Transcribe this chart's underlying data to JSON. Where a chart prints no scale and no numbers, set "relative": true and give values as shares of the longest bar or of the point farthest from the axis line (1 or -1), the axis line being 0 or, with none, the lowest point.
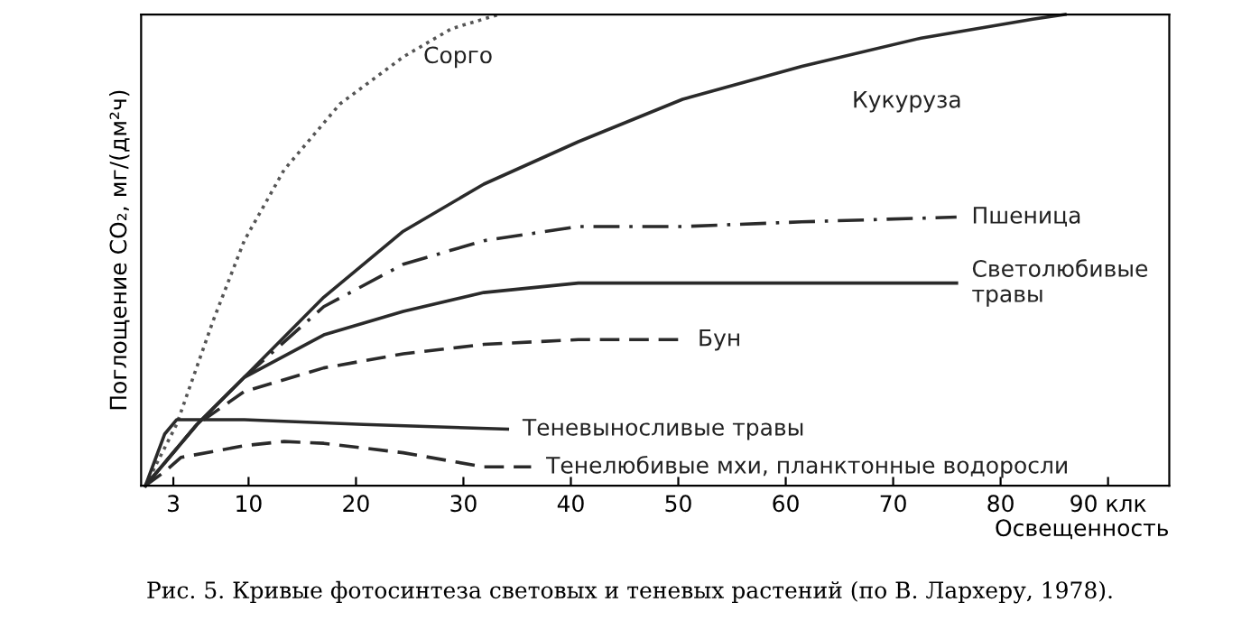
{
  "chart_data": {
    "type": "line",
    "relative": true,
    "xlabel": "Освещенность",
    "ylabel": "Поглощение CO₂, мг/(дм²ч)",
    "xlim": [
      0,
      95.7
    ],
    "xticks": [
      3,
      10,
      20,
      30,
      40,
      50,
      60,
      70,
      80,
      {
        "value": 90,
        "label": "90 клк"
      }
    ],
    "grid": false,
    "marker": "none",
    "annotations": [
      "Рис. 5. Кривые фотосинтеза световых и теневых растений (по В. Лархеру, 1978)."
    ],
    "series": [
      {
        "name": "Сорго",
        "color": "#555555",
        "line_style": "dotted",
        "x": [
          0.4,
          3.3,
          6.7,
          9.6,
          13.3,
          18.5,
          24.4,
          28.9,
          33.3
        ],
        "values": [
          0,
          0.13,
          0.35,
          0.52,
          0.67,
          0.81,
          0.91,
          0.97,
          1.0
        ]
      },
      {
        "name": "Кукуруза",
        "color": "#2a2a2a",
        "line_style": "solid",
        "x": [
          0.4,
          5.2,
          9.6,
          17,
          24.4,
          31.9,
          40.7,
          50.4,
          61.5,
          72.6,
          83,
          86
        ],
        "values": [
          0,
          0.13,
          0.23,
          0.4,
          0.54,
          0.64,
          0.73,
          0.82,
          0.89,
          0.95,
          0.99,
          1.0
        ]
      },
      {
        "name": "Пшеница",
        "color": "#2a2a2a",
        "line_style": "dashdot",
        "x": [
          9.6,
          17,
          24.4,
          31.9,
          40.7,
          50.4,
          61.5,
          75.9
        ],
        "values": [
          0.23,
          0.38,
          0.47,
          0.52,
          0.55,
          0.55,
          0.56,
          0.57
        ]
      },
      {
        "name": "Светолюбивые\nтравы",
        "color": "#2a2a2a",
        "line_style": "solid",
        "x": [
          0.4,
          5.2,
          9.6,
          17,
          24.4,
          31.9,
          40.7,
          50.4,
          61.5,
          75.9
        ],
        "values": [
          0,
          0.13,
          0.23,
          0.32,
          0.37,
          0.41,
          0.43,
          0.43,
          0.43,
          0.43
        ]
      },
      {
        "name": "Бун",
        "color": "#2a2a2a",
        "line_style": "dashed",
        "x": [
          0.4,
          5.2,
          9.6,
          17,
          24.4,
          31.9,
          40.7,
          50.4
        ],
        "values": [
          0,
          0.13,
          0.2,
          0.25,
          0.28,
          0.3,
          0.31,
          0.31
        ]
      },
      {
        "name": "Теневыносливые травы",
        "color": "#2a2a2a",
        "line_style": "solid",
        "x": [
          0.4,
          2.2,
          3.3,
          9.6,
          20.7,
          34.1
        ],
        "values": [
          0,
          0.11,
          0.14,
          0.14,
          0.13,
          0.12
        ]
      },
      {
        "name": "Тенелюбивые мхи, планктонные водоросли",
        "color": "#2a2a2a",
        "line_style": "dashed",
        "x": [
          0.4,
          2.2,
          3.7,
          9.6,
          13.3,
          17,
          24.4,
          31.9,
          36.3
        ],
        "values": [
          0,
          0.03,
          0.06,
          0.085,
          0.094,
          0.09,
          0.07,
          0.04,
          0.04
        ]
      }
    ]
  }
}
